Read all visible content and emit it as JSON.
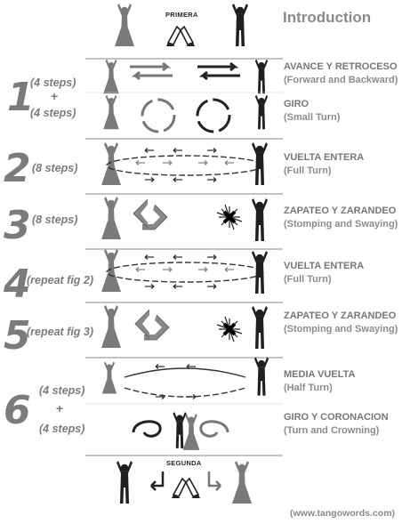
{
  "title": "Introduction",
  "top_tag": "PRIMERA",
  "bottom_tag": "SEGUNDA",
  "credit": "(www.tangowords.com)",
  "figures": [
    {
      "number": "1",
      "parts": [
        {
          "steps": "(4 steps)",
          "es": "AVANCE Y RETROCESO",
          "en": "(Forward and Backward)",
          "icon": "forward-backward-arrows-icon"
        },
        {
          "steps": "(4 steps)",
          "es": "GIRO",
          "en": "(Small Turn)",
          "icon": "small-turn-arrows-icon"
        }
      ]
    },
    {
      "number": "2",
      "parts": [
        {
          "steps": "(8 steps)",
          "es": "VUELTA ENTERA",
          "en": "(Full Turn)",
          "icon": "full-turn-ellipse-icon"
        }
      ]
    },
    {
      "number": "3",
      "parts": [
        {
          "steps": "(8 steps)",
          "es": "ZAPATEO Y ZARANDEO",
          "en": "(Stomping and Swaying)",
          "icon": "stomping-swaying-icon"
        }
      ]
    },
    {
      "number": "4",
      "parts": [
        {
          "steps": "(repeat fig 2)",
          "es": "VUELTA ENTERA",
          "en": "(Full Turn)",
          "icon": "full-turn-ellipse-icon"
        }
      ]
    },
    {
      "number": "5",
      "parts": [
        {
          "steps": "(repeat fig 3)",
          "es": "ZAPATEO Y ZARANDEO",
          "en": "(Stomping and Swaying)",
          "icon": "stomping-swaying-icon"
        }
      ]
    },
    {
      "number": "6",
      "parts": [
        {
          "steps": "(4 steps)",
          "es": "MEDIA VUELTA",
          "en": "(Half Turn)",
          "icon": "half-turn-arc-icon"
        },
        {
          "steps": "(4 steps)",
          "es": "GIRO Y CORONACION",
          "en": "(Turn and Crowning)",
          "icon": "turn-crowning-icon"
        }
      ]
    }
  ],
  "plus": "+",
  "colors": {
    "woman": "#7a7a7a",
    "man": "#1f1f1f",
    "label": "#7b7b7b",
    "rule": "#888888"
  }
}
